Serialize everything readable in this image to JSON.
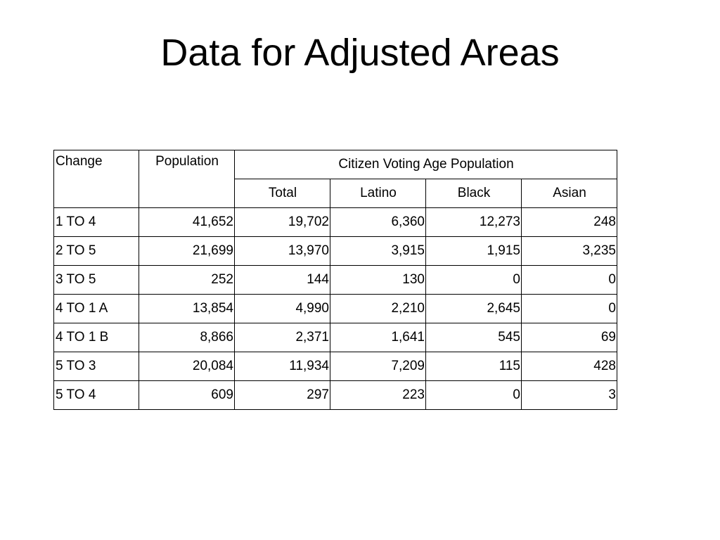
{
  "slide": {
    "title": "Data for Adjusted Areas"
  },
  "table": {
    "headers": {
      "change": "Change",
      "population": "Population",
      "cvap_group": "Citizen Voting Age Population",
      "total": "Total",
      "latino": "Latino",
      "black": "Black",
      "asian": "Asian"
    },
    "rows": [
      [
        "1 TO 4",
        "41,652",
        "19,702",
        "6,360",
        "12,273",
        "248"
      ],
      [
        "2 TO 5",
        "21,699",
        "13,970",
        "3,915",
        "1,915",
        "3,235"
      ],
      [
        "3 TO 5",
        "252",
        "144",
        "130",
        "0",
        "0"
      ],
      [
        "4 TO 1 A",
        "13,854",
        "4,990",
        "2,210",
        "2,645",
        "0"
      ],
      [
        "4 TO 1 B",
        "8,866",
        "2,371",
        "1,641",
        "545",
        "69"
      ],
      [
        "5 TO 3",
        "20,084",
        "11,934",
        "7,209",
        "115",
        "428"
      ],
      [
        "5 TO 4",
        "609",
        "297",
        "223",
        "0",
        "3"
      ]
    ]
  }
}
